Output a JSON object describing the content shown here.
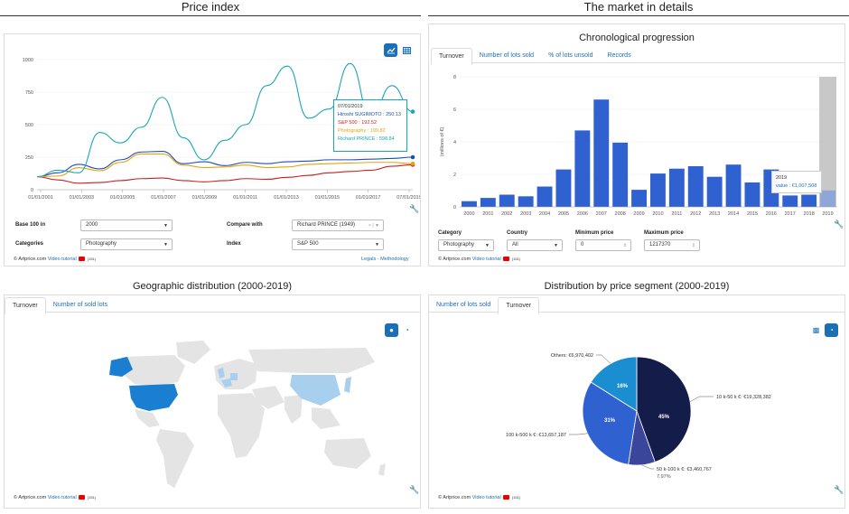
{
  "left_title": "Price index",
  "right_title": "The market in details",
  "price_index": {
    "chart_data": {
      "type": "line",
      "x": [
        "01/01/2001",
        "01/01/2003",
        "01/01/2005",
        "01/01/2007",
        "01/01/2009",
        "01/01/2011",
        "01/01/2013",
        "01/01/2015",
        "01/01/2017",
        "07/01/2019"
      ],
      "yticks": [
        0,
        250,
        500,
        750,
        1000
      ],
      "ylim": [
        0,
        1000
      ],
      "series": [
        {
          "name": "Hiroshi SUGIMOTO",
          "color": "#1f4fb5"
        },
        {
          "name": "S&P 500",
          "color": "#cc1f1f"
        },
        {
          "name": "Photography",
          "color": "#e8a20c"
        },
        {
          "name": "Richard PRINCE",
          "color": "#1aa7b5"
        }
      ]
    },
    "tooltip": {
      "date": "07/01/2019",
      "lines": [
        "Hiroshi SUGIMOTO : 250.13",
        "S&P 500 : 192.52",
        "Photography : 199.82",
        "Richard PRINCE : 598.84"
      ]
    },
    "form": {
      "base_label": "Base 100 in",
      "base_value": "2000",
      "compare_label": "Compare with",
      "compare_value": "Richard PRINCE (1949)",
      "categories_label": "Categories",
      "categories_value": "Photography",
      "index_label": "Index",
      "index_value": "S&P 500"
    },
    "footer": {
      "brand": "© Artprice.com",
      "video": "Video tutorial",
      "count": "(151)",
      "legal": "Legals - Methodology"
    }
  },
  "market": {
    "subtitle": "Chronological progression",
    "tabs": [
      "Turnover",
      "Number of lots sold",
      "% of lots unsold",
      "Records"
    ],
    "chart_data": {
      "type": "bar",
      "categories": [
        "2000",
        "2001",
        "2002",
        "2003",
        "2004",
        "2005",
        "2006",
        "2007",
        "2008",
        "2009",
        "2010",
        "2011",
        "2012",
        "2013",
        "2014",
        "2015",
        "2016",
        "2017",
        "2018",
        "2019"
      ],
      "values": [
        0.35,
        0.55,
        0.75,
        0.65,
        1.25,
        2.3,
        4.7,
        6.6,
        3.95,
        1.05,
        2.05,
        2.35,
        2.5,
        1.85,
        2.6,
        1.5,
        2.3,
        0.7,
        0.75,
        1.01
      ],
      "ylabel": "(millions of €)",
      "yticks": [
        0,
        2,
        4,
        6,
        8
      ],
      "ylim": [
        0,
        8
      ],
      "bar_color": "#2f62d0"
    },
    "tooltip": {
      "year": "2019",
      "value": "value : €1,007,508"
    },
    "form": {
      "category_label": "Category",
      "category_value": "Photography",
      "country_label": "Country",
      "country_value": "All",
      "min_label": "Minimum price",
      "min_value": "0",
      "max_label": "Maximum price",
      "max_value": "1217370"
    },
    "footer": {
      "brand": "© Artprice.com",
      "video": "Video tutorial",
      "count": "(151)"
    }
  },
  "geo": {
    "subtitle": "Geographic distribution (2000-2019)",
    "tabs": [
      "Turnover",
      "Number of sold lots"
    ],
    "footer": {
      "brand": "© Artprice.com",
      "video": "Video tutorial",
      "count": "(151)"
    }
  },
  "segment": {
    "subtitle": "Distribution by price segment (2000-2019)",
    "tabs": [
      "Number of lots sold",
      "Turnover"
    ],
    "chart_data": {
      "type": "pie",
      "slices": [
        {
          "label": "10 k-50 k €: €19,328,382",
          "value": 19328382,
          "pct": "45%",
          "color": "#141c4a"
        },
        {
          "label": "50 k-100 k €: €3,460,767",
          "value": 3460767,
          "pct": "7.97%",
          "color": "#3a4699"
        },
        {
          "label": "100 k-500 k €: €13,657,187",
          "value": 13657187,
          "pct": "31%",
          "color": "#2f62d0"
        },
        {
          "label": "Others: €6,970,402",
          "value": 6970402,
          "pct": "16%",
          "color": "#1a8ed0"
        }
      ]
    },
    "footer": {
      "brand": "© Artprice.com",
      "video": "Video tutorial",
      "count": "(151)"
    }
  }
}
